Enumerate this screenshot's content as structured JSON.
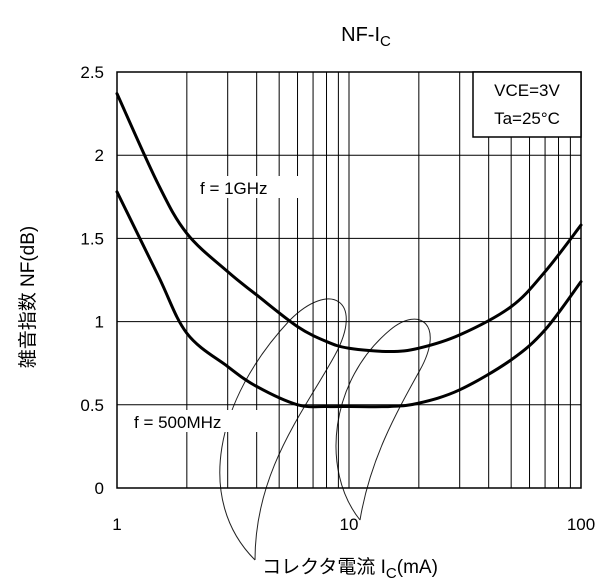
{
  "chart_data": {
    "type": "line",
    "title": "NF-I",
    "title_subscript": "C",
    "xlabel": "コレクタ電流 I",
    "xlabel_subscript": "C",
    "xlabel_unit": "(mA)",
    "ylabel": "雑音指数 NF(dB)",
    "xscale": "log",
    "xlim": [
      1,
      100
    ],
    "ylim": [
      0,
      2.5
    ],
    "x_ticks": [
      "1",
      "10",
      "100"
    ],
    "y_ticks": [
      "0",
      "0.5",
      "1",
      "1.5",
      "2",
      "2.5"
    ],
    "grid": true,
    "conditions": [
      "VCE=3V",
      "Ta=25°C"
    ],
    "series": [
      {
        "name": "f = 1GHz",
        "x": [
          1,
          1.5,
          2,
          3,
          4,
          6,
          8,
          10,
          15,
          20,
          30,
          50,
          70,
          100
        ],
        "y": [
          2.37,
          1.83,
          1.53,
          1.3,
          1.16,
          0.97,
          0.88,
          0.84,
          0.82,
          0.84,
          0.92,
          1.09,
          1.3,
          1.58
        ]
      },
      {
        "name": "f = 500MHz",
        "x": [
          1,
          1.5,
          2,
          3,
          4,
          6,
          8,
          10,
          15,
          20,
          30,
          50,
          70,
          100
        ],
        "y": [
          1.78,
          1.28,
          0.93,
          0.73,
          0.61,
          0.5,
          0.49,
          0.49,
          0.49,
          0.51,
          0.59,
          0.77,
          0.95,
          1.24
        ]
      }
    ]
  }
}
